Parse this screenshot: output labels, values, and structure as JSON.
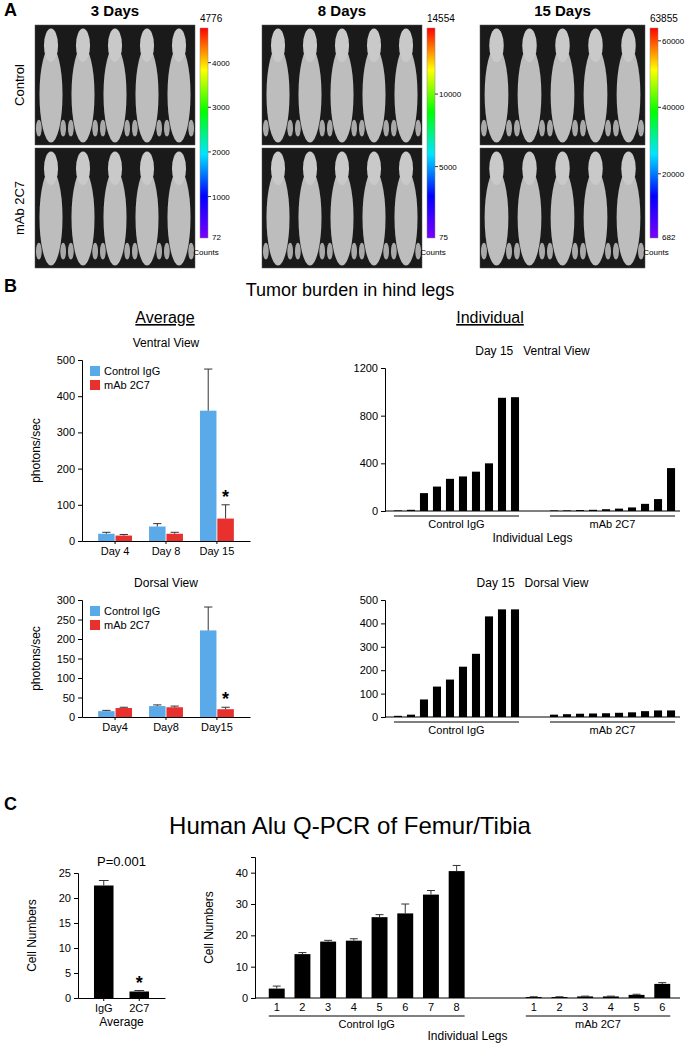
{
  "panels": [
    {
      "label": "A",
      "column_titles": [
        "3 Days",
        "8 Days",
        "15 Days"
      ],
      "row_titles": [
        "Control",
        "mAb 2C7"
      ],
      "colorbars": [
        {
          "range": [
            72,
            4776
          ],
          "ticks": [
            1000,
            2000,
            3000,
            4000
          ],
          "label": "Counts"
        },
        {
          "range": [
            75,
            14554
          ],
          "ticks": [
            5000,
            10000
          ],
          "label": "Counts"
        },
        {
          "range": [
            682,
            63855
          ],
          "ticks": [
            20000,
            40000,
            60000
          ],
          "label": "Counts"
        }
      ]
    },
    {
      "label": "B",
      "title": "Tumor burden in hind legs",
      "column_titles": [
        "Average",
        "Individual"
      ]
    },
    {
      "label": "C",
      "title": "Human Alu Q-PCR of Femur/Tibia"
    }
  ],
  "chart_data": [
    {
      "type": "bar",
      "title": "Ventral View",
      "ylabel": "photons/sec",
      "categories": [
        "Day 4",
        "Day 8",
        "Day 15"
      ],
      "series": [
        {
          "name": "Control IgG",
          "color": "#5aaaea",
          "values": [
            20,
            40,
            360
          ],
          "errors": [
            4,
            8,
            115
          ]
        },
        {
          "name": "mAb 2C7",
          "color": "#e8302e",
          "values": [
            15,
            20,
            62
          ],
          "errors": [
            3,
            4,
            38
          ]
        }
      ],
      "ylim": [
        0,
        500
      ],
      "yticks": [
        0,
        100,
        200,
        300,
        400,
        500
      ],
      "legend": "upper left",
      "annotations": [
        {
          "text": "*",
          "x": "Day 15",
          "series": "mAb 2C7"
        }
      ]
    },
    {
      "type": "bar",
      "title": "Dorsal View",
      "ylabel": "photons/sec",
      "categories": [
        "Day4",
        "Day8",
        "Day15"
      ],
      "series": [
        {
          "name": "Control IgG",
          "color": "#5aaaea",
          "values": [
            15,
            28,
            222
          ],
          "errors": [
            2,
            3,
            60
          ]
        },
        {
          "name": "mAb 2C7",
          "color": "#e8302e",
          "values": [
            23,
            25,
            20
          ],
          "errors": [
            2,
            3,
            5
          ]
        }
      ],
      "ylim": [
        0,
        300
      ],
      "yticks": [
        0,
        50,
        100,
        150,
        200,
        250,
        300
      ],
      "legend": "upper left",
      "annotations": [
        {
          "text": "*",
          "x": "Day15",
          "series": "mAb 2C7"
        }
      ]
    },
    {
      "type": "bar",
      "title": "Day 15   Ventral View",
      "xlabel": "Individual Legs",
      "series": [
        {
          "name": "Control IgG",
          "color": "#000000",
          "values": [
            5,
            10,
            150,
            205,
            270,
            290,
            330,
            400,
            950,
            955
          ]
        },
        {
          "name": "mAb 2C7",
          "color": "#000000",
          "values": [
            5,
            5,
            8,
            10,
            15,
            20,
            30,
            60,
            100,
            360
          ]
        }
      ],
      "ylim": [
        0,
        1200
      ],
      "yticks": [
        0,
        400,
        800,
        1200
      ]
    },
    {
      "type": "bar",
      "title": "Day 15   Dorsal View",
      "series": [
        {
          "name": "Control IgG",
          "color": "#000000",
          "values": [
            5,
            10,
            75,
            130,
            160,
            215,
            270,
            430,
            460,
            460
          ]
        },
        {
          "name": "mAb 2C7",
          "color": "#000000",
          "values": [
            10,
            12,
            14,
            15,
            16,
            18,
            20,
            25,
            28,
            28
          ]
        }
      ],
      "ylim": [
        0,
        500
      ],
      "yticks": [
        0,
        100,
        200,
        300,
        400,
        500
      ]
    },
    {
      "type": "bar",
      "ylabel": "Cell Numbers",
      "xlabel": "Average",
      "categories": [
        "IgG",
        "2C7"
      ],
      "values": [
        22.5,
        1.3
      ],
      "errors": [
        1,
        0.2
      ],
      "color": "#000000",
      "ylim": [
        0,
        25
      ],
      "yticks": [
        0,
        5,
        10,
        15,
        20,
        25
      ],
      "annotations": [
        {
          "text": "P=0.001"
        },
        {
          "text": "*",
          "x": "2C7"
        }
      ]
    },
    {
      "type": "bar",
      "ylabel": "Cell Numbers",
      "xlabel": "Individual Legs",
      "series": [
        {
          "name": "Control IgG",
          "color": "#000000",
          "categories": [
            "1",
            "2",
            "3",
            "4",
            "5",
            "6",
            "7",
            "8"
          ],
          "values": [
            3,
            14,
            18,
            18.3,
            25.8,
            27,
            33,
            40.5
          ],
          "errors": [
            0.8,
            0.5,
            0.4,
            0.6,
            0.8,
            3,
            1.3,
            1.8
          ]
        },
        {
          "name": "mAb 2C7",
          "color": "#000000",
          "categories": [
            "1",
            "2",
            "3",
            "4",
            "5",
            "6"
          ],
          "values": [
            0.3,
            0.3,
            0.5,
            0.5,
            1,
            4.5
          ],
          "errors": [
            0.1,
            0.1,
            0.1,
            0.1,
            0.2,
            0.4
          ]
        }
      ],
      "ylim": [
        0,
        45
      ],
      "yticks": [
        0,
        10,
        20,
        30,
        40
      ]
    }
  ]
}
